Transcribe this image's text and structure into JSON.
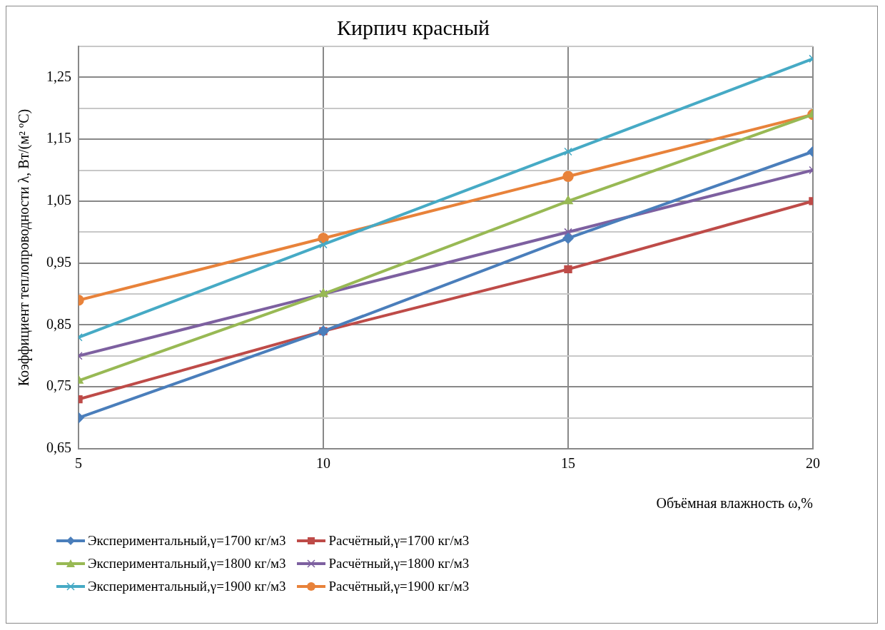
{
  "chart_data": {
    "type": "line",
    "title": "Кирпич красный",
    "xlabel": "Объёмная влажность ω,%",
    "ylabel": "Коэффициент теплопроводности λ, Вт/(м² ºС)",
    "x": [
      5,
      10,
      15,
      20
    ],
    "xlim": [
      5,
      20
    ],
    "xticks": [
      5,
      10,
      15,
      20
    ],
    "ylim": [
      0.65,
      1.3
    ],
    "yticks": [
      {
        "value": 0.65,
        "label": "0,65"
      },
      {
        "value": 0.7,
        "label": null
      },
      {
        "value": 0.75,
        "label": "0,75"
      },
      {
        "value": 0.8,
        "label": null
      },
      {
        "value": 0.85,
        "label": "0,85"
      },
      {
        "value": 0.9,
        "label": null
      },
      {
        "value": 0.95,
        "label": "0,95"
      },
      {
        "value": 1.0,
        "label": null
      },
      {
        "value": 1.05,
        "label": "1,05"
      },
      {
        "value": 1.1,
        "label": null
      },
      {
        "value": 1.15,
        "label": "1,15"
      },
      {
        "value": 1.2,
        "label": null
      },
      {
        "value": 1.25,
        "label": "1,25"
      },
      {
        "value": 1.3,
        "label": null
      }
    ],
    "grid": true,
    "legend": "bottom",
    "line_style": "solid",
    "series": [
      {
        "name": "Экспериментальный,γ=1700 кг/м3",
        "color": "#4a7ebb",
        "marker": "diamond",
        "values": [
          0.7,
          0.84,
          0.99,
          1.13
        ]
      },
      {
        "name": "Расчётный,γ=1700 кг/м3",
        "color": "#be4b48",
        "marker": "square",
        "values": [
          0.73,
          0.84,
          0.94,
          1.05
        ]
      },
      {
        "name": "Экспериментальный,γ=1800 кг/м3",
        "color": "#98b954",
        "marker": "triangle",
        "values": [
          0.76,
          0.9,
          1.05,
          1.19
        ]
      },
      {
        "name": "Расчётный,γ=1800 кг/м3",
        "color": "#7d60a0",
        "marker": "cross",
        "values": [
          0.8,
          0.9,
          1.0,
          1.1
        ]
      },
      {
        "name": "Экспериментальный,γ=1900 кг/м3",
        "color": "#46aac5",
        "marker": "cross",
        "values": [
          0.83,
          0.98,
          1.13,
          1.28
        ]
      },
      {
        "name": "Расчётный,γ=1900 кг/м3",
        "color": "#e8823a",
        "marker": "circle",
        "values": [
          0.89,
          0.99,
          1.09,
          1.19
        ]
      }
    ]
  }
}
